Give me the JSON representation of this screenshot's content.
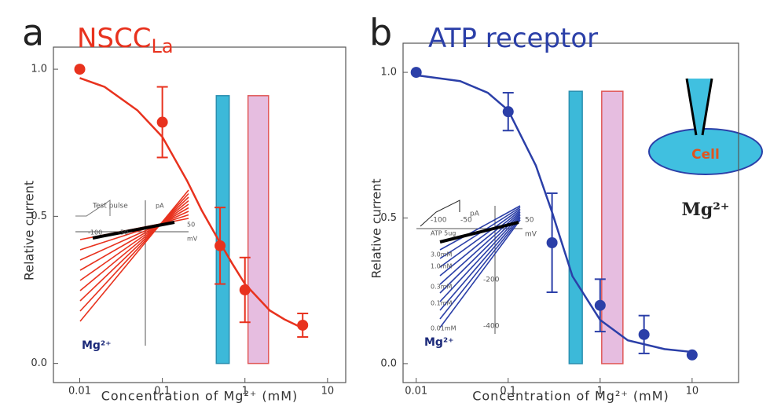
{
  "chart_data": [
    {
      "type": "scatter",
      "panel_label": "a",
      "title": "NSCC",
      "title_subscript": "La",
      "title_color": "#e8321e",
      "xlabel": "Concentration of Mg²⁺ (mM)",
      "ylabel": "Relative current",
      "xscale": "log",
      "xlim": [
        0.0048,
        16.6
      ],
      "ylim": [
        -0.065,
        1.075
      ],
      "xticks": [
        0.01,
        0.1,
        1,
        10
      ],
      "yticks": [
        {
          "value": 0,
          "label": "0.0"
        },
        {
          "value": 0.5,
          "label": "0.5"
        },
        {
          "value": 1,
          "label": "1.0"
        }
      ],
      "points": {
        "color": "#e8321e",
        "x": [
          0.01,
          0.1,
          0.5,
          1,
          5
        ],
        "values": [
          1.0,
          0.82,
          0.4,
          0.25,
          0.13
        ],
        "errors": [
          0,
          0.12,
          0.13,
          0.11,
          0.04
        ]
      },
      "fit": {
        "color": "#e8321e",
        "x": [
          0.01,
          0.02,
          0.05,
          0.1,
          0.2,
          0.3,
          0.5,
          0.7,
          1,
          2,
          3,
          5
        ],
        "values": [
          0.97,
          0.94,
          0.86,
          0.77,
          0.62,
          0.52,
          0.41,
          0.34,
          0.27,
          0.18,
          0.15,
          0.12
        ]
      },
      "bands": [
        {
          "x0": 0.45,
          "x1": 0.645,
          "top": 0.91,
          "color": "#3cb9d9",
          "stroke": "#2a8fb0"
        },
        {
          "x0": 1.09,
          "x1": 1.93,
          "top": 0.91,
          "color": "#e6bde0",
          "stroke": "#e05858"
        }
      ],
      "inset_texts": [
        "Test pulse",
        "-100",
        "-50",
        "50",
        "pA",
        "mV",
        "Mg²⁺"
      ]
    },
    {
      "type": "scatter",
      "panel_label": "b",
      "title": "ATP receptor",
      "title_color": "#2b3fa8",
      "xlabel": "Concentration of Mg²⁺ (mM)",
      "ylabel": "Relative current",
      "xscale": "log",
      "xlim": [
        0.0072,
        32
      ],
      "ylim": [
        -0.065,
        1.1
      ],
      "xticks": [
        0.01,
        0.1,
        1,
        10
      ],
      "yticks": [
        {
          "value": 0,
          "label": "0.0"
        },
        {
          "value": 0.5,
          "label": "0.5"
        },
        {
          "value": 1,
          "label": "1.0"
        }
      ],
      "points": {
        "color": "#2b3fa8",
        "x": [
          0.01,
          0.1,
          0.3,
          1,
          3,
          10
        ],
        "values": [
          1.0,
          0.865,
          0.415,
          0.2,
          0.1,
          0.03
        ],
        "errors": [
          0,
          0.065,
          0.17,
          0.09,
          0.065,
          0
        ]
      },
      "fit": {
        "color": "#2b3fa8",
        "x": [
          0.01,
          0.03,
          0.06,
          0.1,
          0.2,
          0.3,
          0.5,
          1,
          2,
          5,
          10
        ],
        "values": [
          0.99,
          0.97,
          0.93,
          0.87,
          0.68,
          0.52,
          0.3,
          0.15,
          0.08,
          0.05,
          0.04
        ]
      },
      "bands": [
        {
          "x0": 0.46,
          "x1": 0.64,
          "top": 0.935,
          "color": "#3cb9d9",
          "stroke": "#2a8fb0"
        },
        {
          "x0": 1.04,
          "x1": 1.77,
          "top": 0.935,
          "color": "#e6bde0",
          "stroke": "#e05858"
        }
      ],
      "inset_texts": [
        "pA",
        "-100",
        "-50",
        "50",
        "mV",
        "-200",
        "-400",
        "ATP 5ug",
        "3.0mM",
        "1.0mM",
        "0.3mM",
        "0.1mM",
        "0.01mM",
        "Mg²⁺"
      ]
    }
  ],
  "diagram": {
    "cell_label": "Cell",
    "ion_label": "Mg²⁺"
  }
}
